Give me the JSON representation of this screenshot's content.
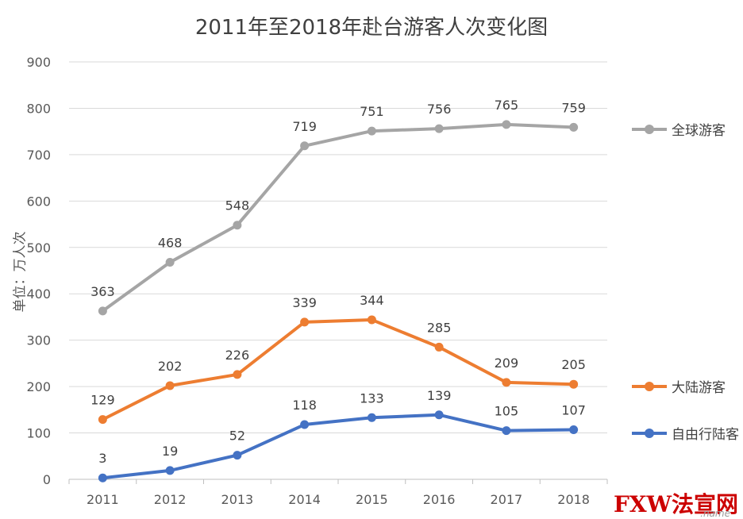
{
  "chart_data": {
    "type": "line",
    "title": "2011年至2018年赴台游客人次变化图",
    "ylabel": "单位：万人次",
    "xlabel": "",
    "ylim": [
      0,
      900
    ],
    "yticks": [
      0,
      100,
      200,
      300,
      400,
      500,
      600,
      700,
      800,
      900
    ],
    "grid": true,
    "legend_position": "right",
    "categories": [
      "2011",
      "2012",
      "2013",
      "2014",
      "2015",
      "2016",
      "2017",
      "2018"
    ],
    "series": [
      {
        "name": "全球游客",
        "color": "#a5a5a5",
        "values": [
          363,
          468,
          548,
          719,
          751,
          756,
          765,
          759
        ]
      },
      {
        "name": "大陆游客",
        "color": "#ed7d31",
        "values": [
          129,
          202,
          226,
          339,
          344,
          285,
          209,
          205
        ]
      },
      {
        "name": "自由行陆客",
        "color": "#4472c4",
        "values": [
          3,
          19,
          52,
          118,
          133,
          139,
          105,
          107
        ]
      }
    ]
  },
  "watermark": {
    "main": "FXW法宣网",
    "sub": ".name"
  }
}
